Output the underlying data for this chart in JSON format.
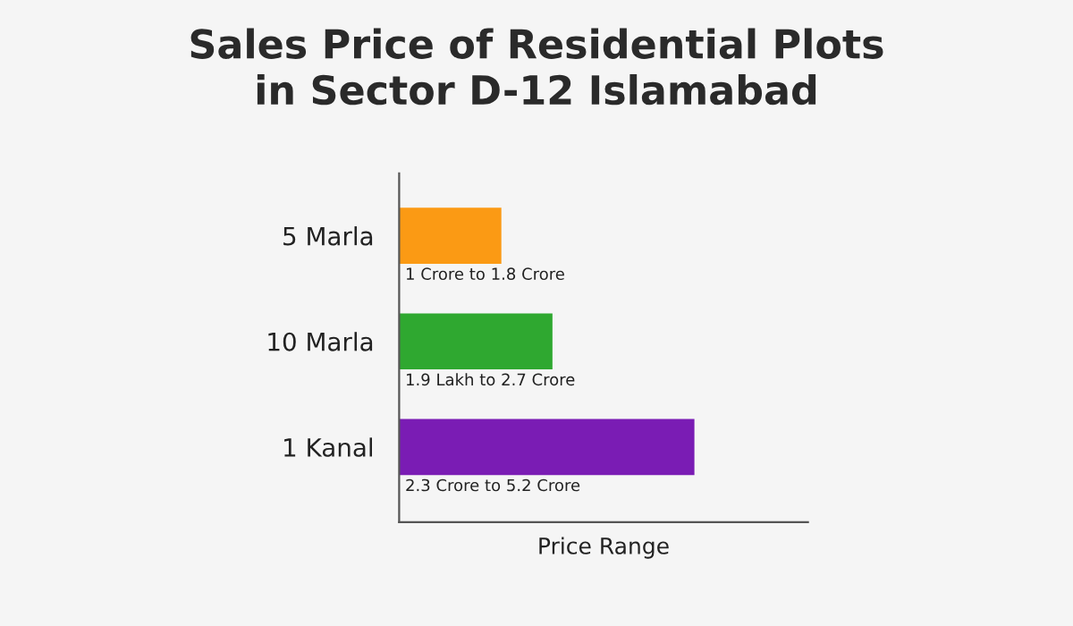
{
  "chart_data": {
    "type": "bar",
    "orientation": "horizontal",
    "xlim": [
      0,
      7.2
    ],
    "tick_labels": "y",
    "title": "Sales Price of Residential Plots\nin Sector D-12 Islamabad",
    "xlabel": "Price Range",
    "categories": [
      "5 Marla",
      "10 Marla",
      "1 Kanal"
    ],
    "values": [
      1.8,
      2.7,
      5.2
    ],
    "colors": [
      "#fb9a14",
      "#2fa830",
      "#7a1cb4"
    ],
    "value_labels": [
      "1 Crore to 1.8 Crore",
      "1.9 Lakh to 2.7 Crore",
      "2.3 Crore to 5.2 Crore"
    ],
    "legend": false,
    "grid": false
  }
}
